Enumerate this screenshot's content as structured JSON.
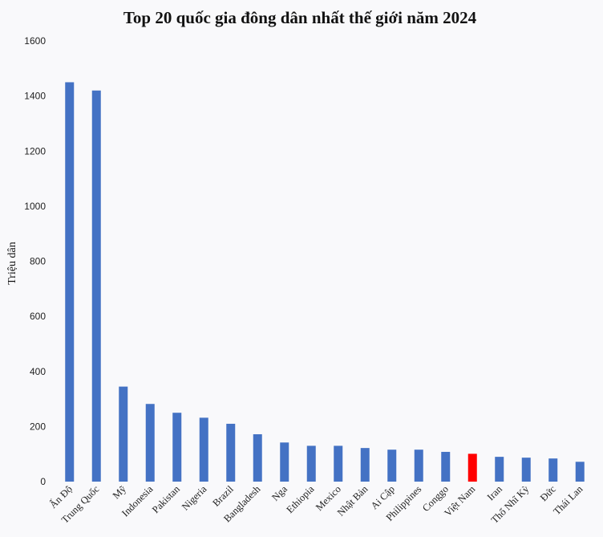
{
  "chart_data": {
    "type": "bar",
    "title": "Top 20 quốc gia đông dân nhất thế giới năm 2024",
    "ylabel": "Triệu dân",
    "xlabel": "",
    "ylim": [
      0,
      1600
    ],
    "yticks": [
      "0",
      "200",
      "400",
      "600",
      "800",
      "1000",
      "1200",
      "1400",
      "1600"
    ],
    "grid": false,
    "categories": [
      "Ấn Độ",
      "Trung Quốc",
      "Mỹ",
      "Indonesia",
      "Pakistan",
      "Nigeria",
      "Brazil",
      "Bangladesh",
      "Nga",
      "Ethiopia",
      "Mexico",
      "Nhật Bản",
      "Ai Cập",
      "Philippines",
      "Conggo",
      "Việt Nam",
      "Iran",
      "Thổ Nhĩ Kỳ",
      "Đức",
      "Thái Lan"
    ],
    "values": [
      1450,
      1420,
      345,
      282,
      250,
      232,
      210,
      172,
      142,
      130,
      130,
      122,
      116,
      116,
      108,
      101,
      90,
      87,
      84,
      72
    ],
    "colors": {
      "bar": "#4472c4",
      "highlight": "#ff0000",
      "highlight_category": "Việt Nam"
    }
  }
}
